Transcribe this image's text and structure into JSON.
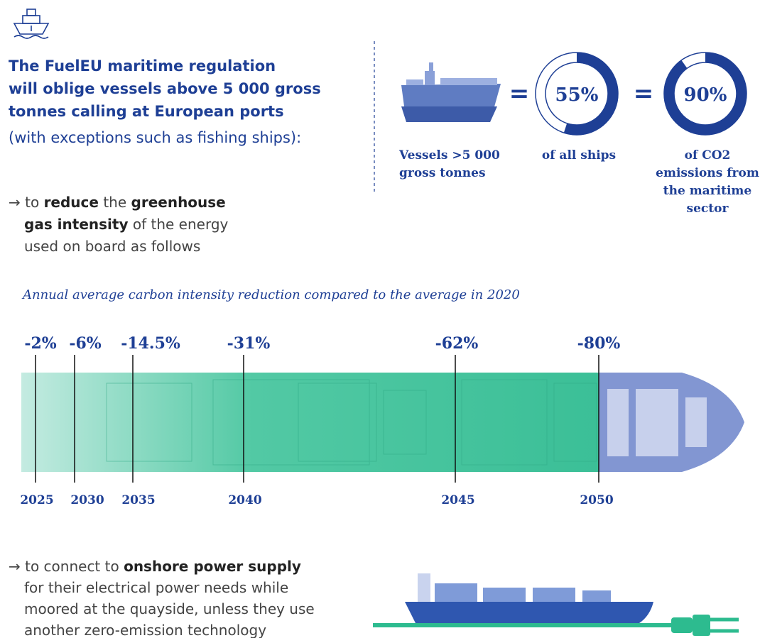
{
  "header": {
    "title_lines": [
      "The FuelEU maritime regulation",
      "will oblige vessels above 5 000 gross",
      "tonnes calling at European ports"
    ],
    "subtitle": "(with exceptions such as fishing ships):"
  },
  "stats": {
    "vessels_lines": [
      "Vessels  >5 000",
      "gross tonnes"
    ],
    "equals": "=",
    "donuts": [
      {
        "value": 55,
        "label": "55%",
        "caption_lines": [
          "of all ships"
        ]
      },
      {
        "value": 90,
        "label": "90%",
        "caption_lines": [
          "of CO2",
          "emissions from",
          "the maritime",
          "sector"
        ]
      }
    ]
  },
  "requirement_1": {
    "lines": [
      [
        {
          "text": "→ to ",
          "bold": false
        },
        {
          "text": "reduce",
          "bold": true
        },
        {
          "text": " the ",
          "bold": false
        },
        {
          "text": "greenhouse",
          "bold": true
        }
      ],
      [
        {
          "text": "gas intensity",
          "bold": true
        },
        {
          "text": " of the energy",
          "bold": false
        }
      ],
      [
        {
          "text": "used on board as follows",
          "bold": false
        }
      ]
    ]
  },
  "timeline": {
    "title": "Annual average carbon intensity reduction compared to the average in 2020",
    "milestones": [
      {
        "year": "2025",
        "reduction": "-2%"
      },
      {
        "year": "2030",
        "reduction": "-6%"
      },
      {
        "year": "2035",
        "reduction": "-14.5%"
      },
      {
        "year": "2040",
        "reduction": "-31%"
      },
      {
        "year": "2045",
        "reduction": "-62%"
      },
      {
        "year": "2050",
        "reduction": "-80%"
      }
    ]
  },
  "requirement_2": {
    "lines": [
      [
        {
          "text": "→ to connect to ",
          "bold": false
        },
        {
          "text": "onshore power supply",
          "bold": true
        }
      ],
      [
        {
          "text": "for their electrical power needs while",
          "bold": false
        }
      ],
      [
        {
          "text": "moored at the quayside, unless they use",
          "bold": false
        }
      ],
      [
        {
          "text": "another zero-emission technology",
          "bold": false
        }
      ]
    ]
  }
}
